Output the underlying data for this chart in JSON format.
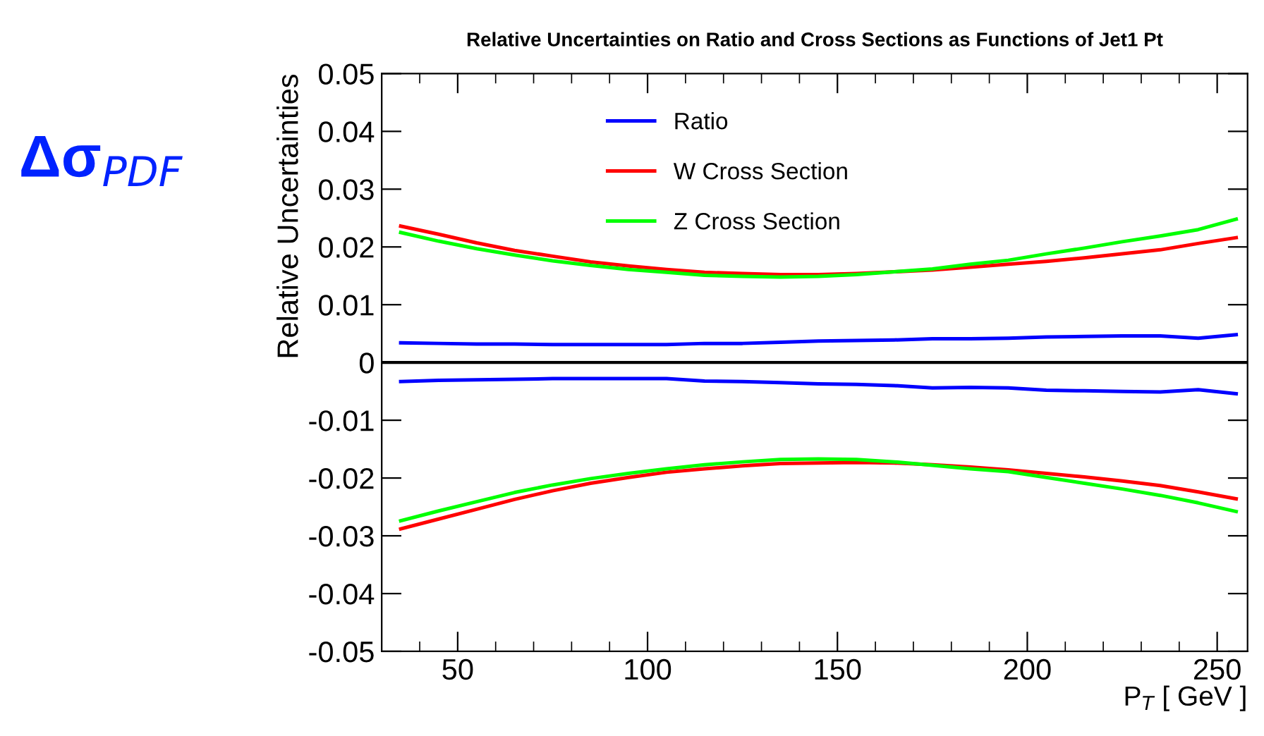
{
  "chart_data": {
    "type": "line",
    "title": "Relative Uncertainties on Ratio and Cross Sections as Functions of Jet1 Pt",
    "xlabel": "P$_{T}$ [ GeV ]",
    "ylabel": "Relative Uncertainties",
    "annotations": [
      "Δσ$_{PDF}$"
    ],
    "x": [
      35,
      45,
      55,
      65,
      75,
      85,
      95,
      105,
      115,
      125,
      135,
      145,
      155,
      165,
      175,
      185,
      195,
      205,
      215,
      225,
      235,
      245,
      255,
      null,
      35,
      45,
      55,
      65,
      75,
      85,
      95,
      105,
      115,
      125,
      135,
      145,
      155,
      165,
      175,
      185,
      195,
      205,
      215,
      225,
      235,
      245,
      255
    ],
    "series": [
      {
        "name": "Ratio",
        "color": "#0000ff",
        "values": [
          0.0034,
          0.0033,
          0.0032,
          0.0032,
          0.0031,
          0.0031,
          0.0031,
          0.0031,
          0.0033,
          0.0033,
          0.0035,
          0.0037,
          0.0038,
          0.0039,
          0.0041,
          0.0041,
          0.0042,
          0.0044,
          0.0045,
          0.0046,
          0.0046,
          0.0042,
          0.0048,
          null,
          -0.0033,
          -0.0031,
          -0.003,
          -0.0029,
          -0.0028,
          -0.0028,
          -0.0028,
          -0.0028,
          -0.0032,
          -0.0033,
          -0.0035,
          -0.0037,
          -0.0038,
          -0.004,
          -0.0044,
          -0.0043,
          -0.0044,
          -0.0048,
          -0.0049,
          -0.005,
          -0.0051,
          -0.0047,
          -0.0054
        ]
      },
      {
        "name": "W Cross Section",
        "color": "#ff0000",
        "values": [
          0.0236,
          0.0222,
          0.0207,
          0.0194,
          0.0184,
          0.0174,
          0.0167,
          0.0161,
          0.0156,
          0.0154,
          0.0152,
          0.0152,
          0.0154,
          0.0157,
          0.016,
          0.0165,
          0.017,
          0.0175,
          0.0181,
          0.0188,
          0.0195,
          0.0206,
          0.0216,
          null,
          -0.0288,
          -0.0271,
          -0.0254,
          -0.0237,
          -0.0222,
          -0.0209,
          -0.0199,
          -0.019,
          -0.0184,
          -0.0179,
          -0.0175,
          -0.0174,
          -0.0173,
          -0.0174,
          -0.0177,
          -0.0181,
          -0.0186,
          -0.0192,
          -0.0198,
          -0.0205,
          -0.0213,
          -0.0224,
          -0.0236
        ]
      },
      {
        "name": "Z Cross Section",
        "color": "#00ff00",
        "values": [
          0.0225,
          0.021,
          0.0197,
          0.0186,
          0.0176,
          0.0168,
          0.0161,
          0.0156,
          0.0151,
          0.0149,
          0.0148,
          0.0149,
          0.0152,
          0.0157,
          0.0162,
          0.017,
          0.0177,
          0.0188,
          0.0198,
          0.0209,
          0.0219,
          0.023,
          0.0248,
          null,
          -0.0274,
          -0.0257,
          -0.0241,
          -0.0225,
          -0.0212,
          -0.0201,
          -0.0192,
          -0.0184,
          -0.0177,
          -0.0172,
          -0.0168,
          -0.0167,
          -0.0168,
          -0.0172,
          -0.0178,
          -0.0184,
          -0.0189,
          -0.0199,
          -0.0209,
          -0.0219,
          -0.023,
          -0.0243,
          -0.0258
        ]
      }
    ],
    "xlim": [
      30,
      258
    ],
    "xticks": [
      50,
      100,
      150,
      200,
      250
    ],
    "ylim": [
      -0.05,
      0.05
    ],
    "yticks": [
      -0.05,
      -0.04,
      -0.03,
      -0.02,
      -0.01,
      0,
      0.01,
      0.02,
      0.03,
      0.04,
      0.05
    ],
    "ref_lines": [
      {
        "axis": "y",
        "value": 0,
        "color": "#000000"
      }
    ],
    "grid": false,
    "legend": "top",
    "marker": "none",
    "line_style": "solid"
  }
}
